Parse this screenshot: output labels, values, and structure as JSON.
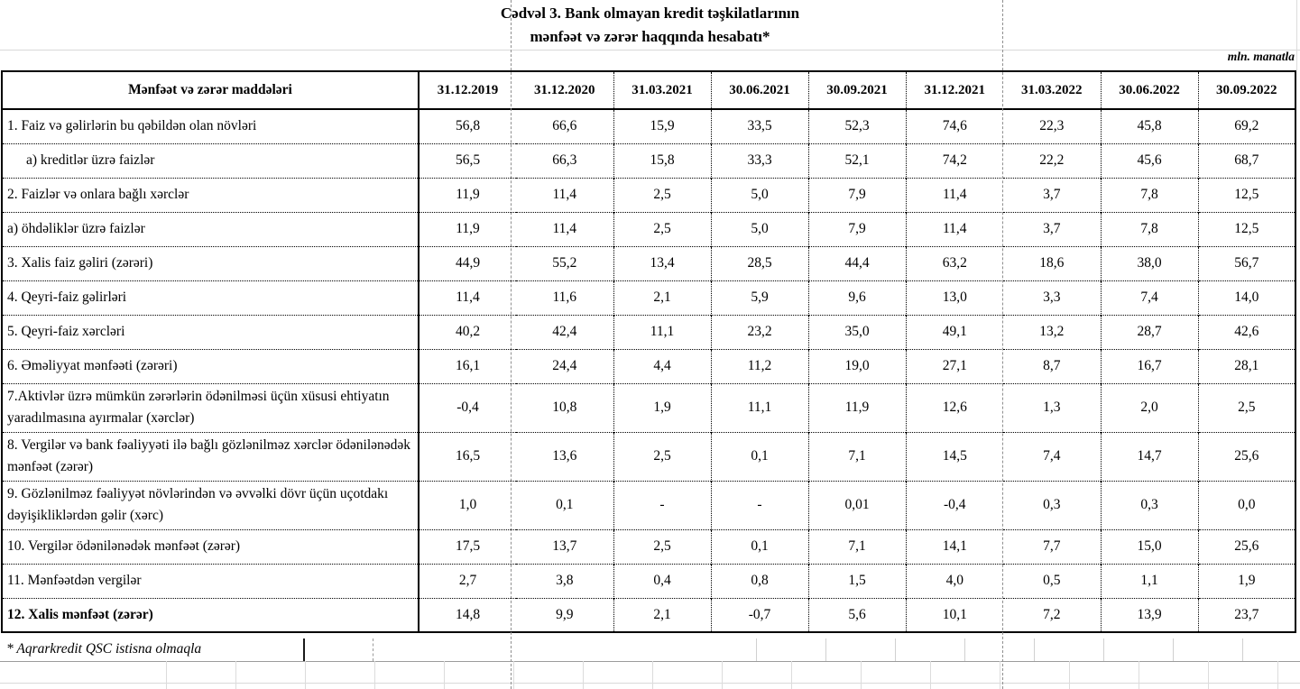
{
  "title": {
    "line1": "Cədvəl 3. Bank olmayan kredit təşkilatlarının",
    "line2": "mənfəət və zərər haqqında hesabatı*"
  },
  "unit_note": "mln. manatla",
  "footnote": "* Aqrarkredit QSC istisna olmaqla",
  "colors": {
    "table_border": "#000000",
    "page_break_line": "#8f8f8f",
    "gridline": "#d9d9d9"
  },
  "table": {
    "header_label": "Mənfəət və zərər maddələri",
    "columns": [
      "31.12.2019",
      "31.12.2020",
      "31.03.2021",
      "30.06.2021",
      "30.09.2021",
      "31.12.2021",
      "31.03.2022",
      "30.06.2022",
      "30.09.2022"
    ],
    "rows": [
      {
        "label": "1. Faiz və gəlirlərin bu qəbildən olan növləri",
        "values": [
          "56,8",
          "66,6",
          "15,9",
          "33,5",
          "52,3",
          "74,6",
          "22,3",
          "45,8",
          "69,2"
        ]
      },
      {
        "label": "a) kreditlər üzrə faizlər",
        "indent": true,
        "values": [
          "56,5",
          "66,3",
          "15,8",
          "33,3",
          "52,1",
          "74,2",
          "22,2",
          "45,6",
          "68,7"
        ]
      },
      {
        "label": "2. Faizlər və onlara bağlı xərclər",
        "values": [
          "11,9",
          "11,4",
          "2,5",
          "5,0",
          "7,9",
          "11,4",
          "3,7",
          "7,8",
          "12,5"
        ]
      },
      {
        "label": "a) öhdəliklər üzrə faizlər",
        "values": [
          "11,9",
          "11,4",
          "2,5",
          "5,0",
          "7,9",
          "11,4",
          "3,7",
          "7,8",
          "12,5"
        ]
      },
      {
        "label": "3. Xalis faiz gəliri (zərəri)",
        "values": [
          "44,9",
          "55,2",
          "13,4",
          "28,5",
          "44,4",
          "63,2",
          "18,6",
          "38,0",
          "56,7"
        ]
      },
      {
        "label": "4. Qeyri-faiz gəlirləri",
        "values": [
          "11,4",
          "11,6",
          "2,1",
          "5,9",
          "9,6",
          "13,0",
          "3,3",
          "7,4",
          "14,0"
        ]
      },
      {
        "label": "5. Qeyri-faiz xərcləri",
        "values": [
          "40,2",
          "42,4",
          "11,1",
          "23,2",
          "35,0",
          "49,1",
          "13,2",
          "28,7",
          "42,6"
        ]
      },
      {
        "label": "6. Əməliyyat mənfəəti (zərəri)",
        "values": [
          "16,1",
          "24,4",
          "4,4",
          "11,2",
          "19,0",
          "27,1",
          "8,7",
          "16,7",
          "28,1"
        ]
      },
      {
        "label": "7.Aktivlər üzrə mümkün zərərlərin ödənilməsi üçün xüsusi ehtiyatın yaradılmasına ayırmalar (xərclər)",
        "tall": true,
        "values": [
          "-0,4",
          "10,8",
          "1,9",
          "11,1",
          "11,9",
          "12,6",
          "1,3",
          "2,0",
          "2,5"
        ]
      },
      {
        "label": "8. Vergilər və bank fəaliyyəti ilə bağlı gözlənilməz xərclər ödənilənədək mənfəət (zərər)",
        "tall": true,
        "values": [
          "16,5",
          "13,6",
          "2,5",
          "0,1",
          "7,1",
          "14,5",
          "7,4",
          "14,7",
          "25,6"
        ]
      },
      {
        "label": "9. Gözlənilməz fəaliyyət növlərindən və əvvəlki dövr üçün uçotdakı dəyişikliklərdən gəlir (xərc)",
        "tall": true,
        "values": [
          "1,0",
          "0,1",
          "-",
          "-",
          "0,01",
          "-0,4",
          "0,3",
          "0,3",
          "0,0"
        ]
      },
      {
        "label": "10. Vergilər ödənilənədək mənfəət (zərər)",
        "values": [
          "17,5",
          "13,7",
          "2,5",
          "0,1",
          "7,1",
          "14,1",
          "7,7",
          "15,0",
          "25,6"
        ]
      },
      {
        "label": "11. Mənfəətdən vergilər",
        "values": [
          "2,7",
          "3,8",
          "0,4",
          "0,8",
          "1,5",
          "4,0",
          "0,5",
          "1,1",
          "1,9"
        ]
      },
      {
        "label": "12. Xalis mənfəət (zərər)",
        "bold": true,
        "values": [
          "14,8",
          "9,9",
          "2,1",
          "-0,7",
          "5,6",
          "10,1",
          "7,2",
          "13,9",
          "23,7"
        ]
      }
    ]
  }
}
